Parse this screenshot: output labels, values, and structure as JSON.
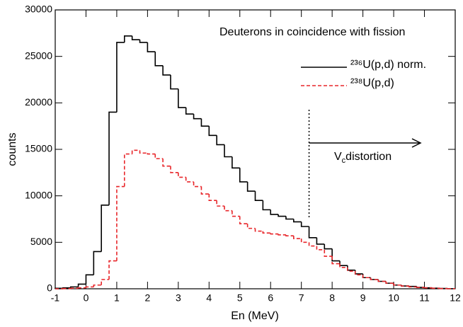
{
  "chart_data": {
    "type": "histogram",
    "title": "Deuterons in coincidence with fission",
    "x_label": "En (MeV)",
    "y_label": "counts",
    "bins": [
      -1,
      -0.75,
      -0.5,
      -0.25,
      0,
      0.25,
      0.5,
      0.75,
      1,
      1.25,
      1.5,
      1.75,
      2,
      2.25,
      2.5,
      2.75,
      3,
      3.25,
      3.5,
      3.75,
      4,
      4.25,
      4.5,
      4.75,
      5,
      5.25,
      5.5,
      5.75,
      6,
      6.25,
      6.5,
      6.75,
      7,
      7.25,
      7.5,
      7.75,
      8,
      8.25,
      8.5,
      8.75,
      9,
      9.25,
      9.5,
      9.75,
      10,
      10.25,
      10.5,
      10.75,
      11,
      11.25,
      11.5,
      11.75,
      12
    ],
    "series": [
      {
        "name": "²³⁶U(p,d) norm.",
        "color": "#000000",
        "dash": false,
        "values": [
          50,
          100,
          200,
          500,
          1500,
          4000,
          9000,
          19000,
          26500,
          27200,
          26800,
          26500,
          25500,
          24000,
          23000,
          21500,
          19500,
          18800,
          18300,
          17500,
          16500,
          15500,
          14200,
          13000,
          11500,
          10500,
          9500,
          8500,
          8000,
          7800,
          7500,
          7200,
          6700,
          5500,
          4800,
          4300,
          3000,
          2500,
          2000,
          1600,
          1200,
          1000,
          800,
          600,
          400,
          300,
          250,
          150,
          100,
          60,
          30,
          10
        ]
      },
      {
        "name": "²³⁸U(p,d)",
        "color": "#e8262a",
        "dash": true,
        "values": [
          0,
          20,
          50,
          100,
          200,
          400,
          1000,
          3000,
          11000,
          14500,
          14900,
          14600,
          14500,
          14000,
          13200,
          12500,
          12000,
          11500,
          11000,
          10200,
          9500,
          8900,
          8400,
          7800,
          7000,
          6500,
          6200,
          6000,
          5900,
          5800,
          5700,
          5400,
          5000,
          4600,
          4200,
          3500,
          2700,
          2300,
          1900,
          1500,
          1200,
          1000,
          800,
          600,
          400,
          300,
          200,
          150,
          100,
          50,
          20,
          10
        ]
      }
    ],
    "xlim": [
      -1,
      12
    ],
    "xticks": [
      -1,
      0,
      1,
      2,
      3,
      4,
      5,
      6,
      7,
      8,
      9,
      10,
      11,
      12
    ],
    "ylim": [
      0,
      30000
    ],
    "yticks": [
      0,
      5000,
      10000,
      15000,
      20000,
      25000,
      30000
    ],
    "cutoff": 7.25,
    "cutoff_label": {
      "main": "V",
      "sub": "c",
      "rest": "distortion"
    }
  }
}
